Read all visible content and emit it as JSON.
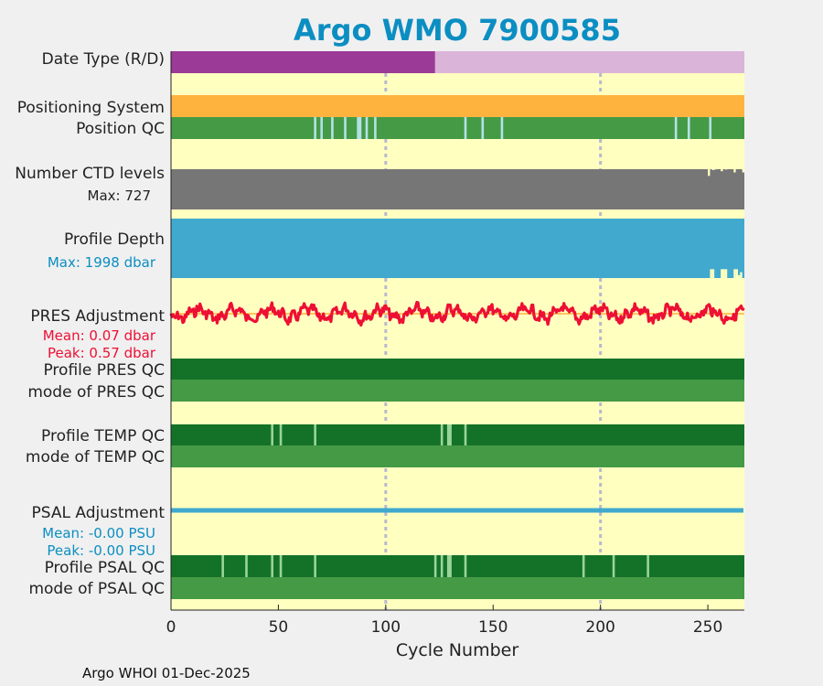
{
  "chart_data": {
    "type": "timeline",
    "title": "Argo WMO 7900585",
    "xlabel": "Cycle Number",
    "xlim": [
      0,
      267
    ],
    "xticks": [
      0,
      50,
      100,
      150,
      200,
      250
    ],
    "xtick_labels": [
      "0",
      "50",
      "100",
      "150",
      "200",
      "250"
    ],
    "grid_x": [
      100,
      200
    ],
    "footer": "Argo WHOI 01-Dec-2025",
    "colors": {
      "background": "#ffffc0",
      "date_r": "#9b3a97",
      "date_d": "#dbb4d9",
      "positioning": "#ffb33f",
      "qc_good": "#459a45",
      "qc_dark": "#137227",
      "qc_mark": "#b3e1e6",
      "ctd": "#767676",
      "depth": "#41a9ce",
      "pres": "#ee0f34",
      "pres_mean": "#ffb33f",
      "psal": "#41a9ce",
      "blue_text": "#0b8ec2",
      "red_text": "#ee0f34",
      "title": "#0b8ec2"
    },
    "labels": {
      "date_type": "Date Type (R/D)",
      "positioning": "Positioning System",
      "position_qc": "Position QC",
      "ctd_levels": "Number CTD levels",
      "ctd_max": "Max: 727",
      "profile_depth": "Profile Depth",
      "depth_max": "Max: 1998 dbar",
      "pres_adjustment": "PRES Adjustment",
      "pres_mean": "Mean: 0.07 dbar",
      "pres_peak": "Peak: 0.57 dbar",
      "profile_pres_qc": "Profile PRES QC",
      "mode_pres_qc": "mode of PRES QC",
      "profile_temp_qc": "Profile TEMP QC",
      "mode_temp_qc": "mode of TEMP QC",
      "psal_adjustment": "PSAL Adjustment",
      "psal_mean": "Mean: -0.00 PSU",
      "psal_peak": "Peak: -0.00 PSU",
      "profile_psal_qc": "Profile PSAL QC",
      "mode_psal_qc": "mode of PSAL QC"
    },
    "date_type": {
      "R_until_cycle": 123,
      "D_until_cycle": 267
    },
    "position_qc_marks": [
      67,
      70,
      75,
      81,
      87,
      88,
      91,
      95,
      137,
      145,
      154,
      235,
      241,
      251
    ],
    "ctd_levels": {
      "max": 727,
      "typical": 700,
      "dips": [
        [
          250,
          580
        ],
        [
          252,
          680
        ],
        [
          253,
          690
        ],
        [
          256,
          660
        ],
        [
          258,
          690
        ],
        [
          262,
          640
        ],
        [
          264,
          700
        ],
        [
          266,
          640
        ]
      ]
    },
    "profile_depth": {
      "max": 1998,
      "dips": [
        [
          251,
          1700
        ],
        [
          252,
          1700
        ],
        [
          256,
          1700
        ],
        [
          257,
          1700
        ],
        [
          258,
          1700
        ],
        [
          262,
          1700
        ],
        [
          263,
          1700
        ],
        [
          264,
          1900
        ],
        [
          265,
          1800
        ]
      ]
    },
    "pres_adjustment": {
      "mean": 0.07,
      "peak": 0.57
    },
    "profile_temp_qc_marks": [
      47,
      51,
      67,
      126,
      129,
      130,
      137
    ],
    "psal_adjustment": {
      "mean": -0.0,
      "peak": -0.0
    },
    "profile_psal_qc_marks": [
      24,
      35,
      47,
      51,
      67,
      123,
      126,
      129,
      130,
      137,
      192,
      206,
      222
    ]
  }
}
